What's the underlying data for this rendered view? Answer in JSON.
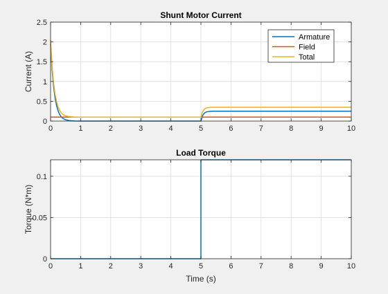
{
  "chart_data": [
    {
      "type": "line",
      "title": "Shunt Motor Current",
      "xlabel": "",
      "ylabel": "Current (A)",
      "xlim": [
        0,
        10
      ],
      "ylim": [
        0,
        2.5
      ],
      "x_ticks": [
        0,
        1,
        2,
        3,
        4,
        5,
        6,
        7,
        8,
        9,
        10
      ],
      "y_ticks": [
        0,
        0.5,
        1,
        1.5,
        2,
        2.5
      ],
      "y_tick_labels": [
        "0",
        "0.5",
        "1",
        "1.5",
        "2",
        "2.5"
      ],
      "grid": true,
      "legend": "top-right",
      "series": [
        {
          "name": "Armature",
          "color": "#0072BD",
          "x": [
            0,
            0.05,
            0.1,
            0.15,
            0.2,
            0.25,
            0.3,
            0.35,
            0.4,
            0.45,
            0.5,
            0.6,
            0.7,
            0.8,
            1,
            2,
            3,
            4,
            5,
            5.05,
            5.1,
            5.15,
            5.2,
            5.3,
            5.4,
            5.6,
            5.8,
            6,
            7,
            8,
            9,
            10
          ],
          "y": [
            1.95,
            1.3,
            0.87,
            0.58,
            0.39,
            0.26,
            0.17,
            0.11,
            0.075,
            0.05,
            0.033,
            0.015,
            0.007,
            0.003,
            0,
            0,
            0,
            0,
            0,
            0.13,
            0.19,
            0.22,
            0.235,
            0.245,
            0.25,
            0.25,
            0.25,
            0.25,
            0.25,
            0.25,
            0.25,
            0.25
          ]
        },
        {
          "name": "Field",
          "color": "#D95319",
          "x": [
            0,
            10
          ],
          "y": [
            0.1,
            0.1
          ]
        },
        {
          "name": "Total",
          "color": "#EDB120",
          "x": [
            0,
            0.05,
            0.1,
            0.15,
            0.2,
            0.25,
            0.3,
            0.35,
            0.4,
            0.45,
            0.5,
            0.6,
            0.7,
            0.8,
            1,
            2,
            3,
            4,
            5,
            5.05,
            5.1,
            5.15,
            5.2,
            5.3,
            5.4,
            5.6,
            5.8,
            6,
            7,
            8,
            9,
            10
          ],
          "y": [
            2.05,
            1.4,
            0.97,
            0.68,
            0.49,
            0.36,
            0.27,
            0.21,
            0.175,
            0.15,
            0.133,
            0.115,
            0.107,
            0.103,
            0.1,
            0.1,
            0.1,
            0.1,
            0.1,
            0.23,
            0.29,
            0.32,
            0.335,
            0.345,
            0.35,
            0.35,
            0.35,
            0.35,
            0.35,
            0.35,
            0.35,
            0.35
          ]
        }
      ]
    },
    {
      "type": "line",
      "title": "Load Torque",
      "xlabel": "Time (s)",
      "ylabel": "Torque (N*m)",
      "xlim": [
        0,
        10
      ],
      "ylim": [
        0,
        0.12
      ],
      "x_ticks": [
        0,
        1,
        2,
        3,
        4,
        5,
        6,
        7,
        8,
        9,
        10
      ],
      "y_ticks": [
        0,
        0.05,
        0.1
      ],
      "y_tick_labels": [
        "0",
        "0.05",
        "0.1"
      ],
      "grid": true,
      "series": [
        {
          "color": "#0072BD",
          "x": [
            0,
            5,
            5,
            10
          ],
          "y": [
            0,
            0,
            0.12,
            0.12
          ]
        }
      ]
    }
  ]
}
